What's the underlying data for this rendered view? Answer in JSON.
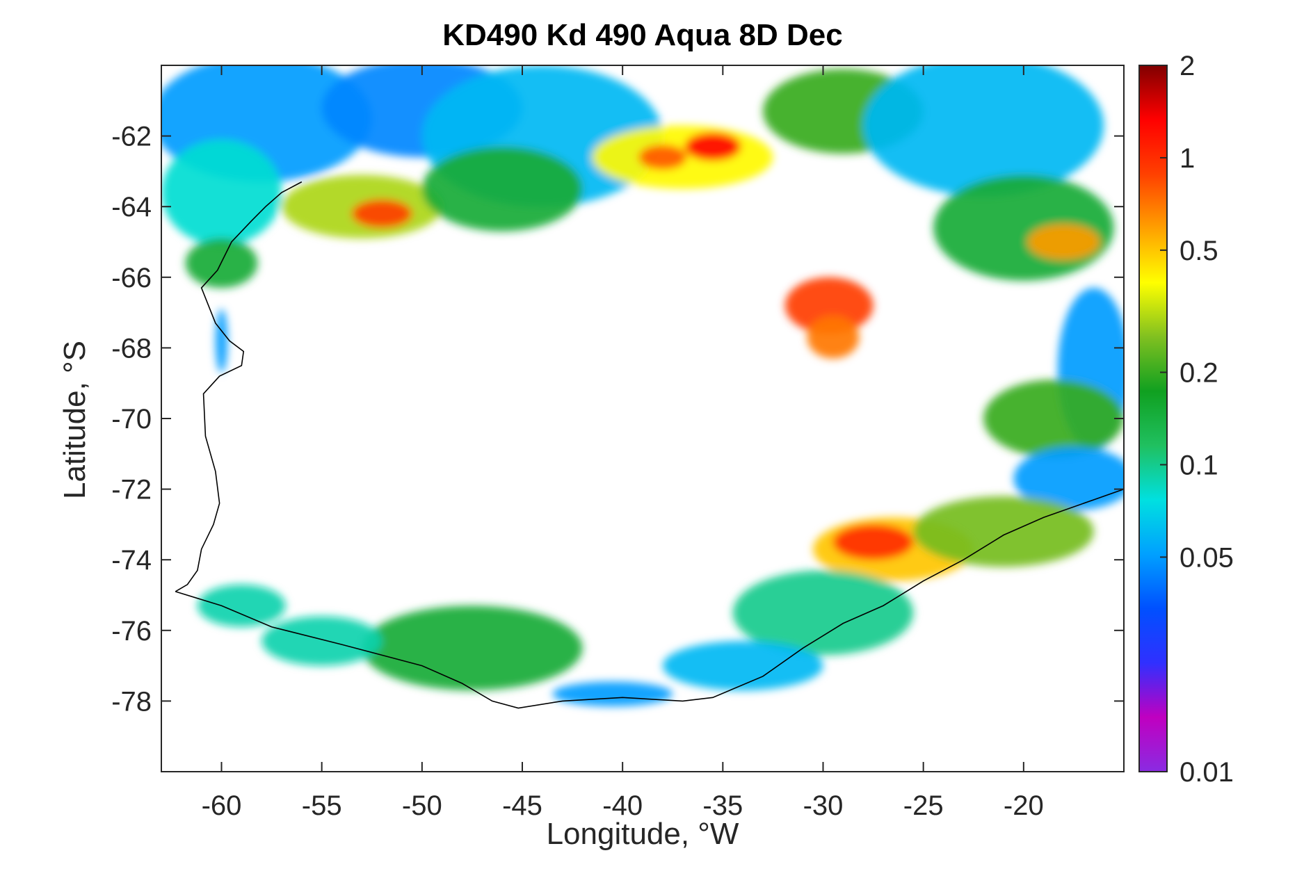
{
  "title": "KD490 Kd 490 Aqua 8D Dec",
  "x_axis": {
    "label": "Longitude, °W",
    "range": [
      -63,
      -15
    ],
    "ticks": [
      {
        "value": -60,
        "label": "-60"
      },
      {
        "value": -55,
        "label": "-55"
      },
      {
        "value": -50,
        "label": "-50"
      },
      {
        "value": -45,
        "label": "-45"
      },
      {
        "value": -40,
        "label": "-40"
      },
      {
        "value": -35,
        "label": "-35"
      },
      {
        "value": -30,
        "label": "-30"
      },
      {
        "value": -25,
        "label": "-25"
      },
      {
        "value": -20,
        "label": "-20"
      }
    ]
  },
  "y_axis": {
    "label": "Latitude, °S",
    "range": [
      -80,
      -60
    ],
    "ticks": [
      {
        "value": -62,
        "label": "-62"
      },
      {
        "value": -64,
        "label": "-64"
      },
      {
        "value": -66,
        "label": "-66"
      },
      {
        "value": -68,
        "label": "-68"
      },
      {
        "value": -70,
        "label": "-70"
      },
      {
        "value": -72,
        "label": "-72"
      },
      {
        "value": -74,
        "label": "-74"
      },
      {
        "value": -76,
        "label": "-76"
      },
      {
        "value": -78,
        "label": "-78"
      }
    ]
  },
  "colorbar": {
    "scale": "log",
    "range": [
      0.01,
      2
    ],
    "ticks": [
      {
        "value": 2,
        "label": "2"
      },
      {
        "value": 1,
        "label": "1"
      },
      {
        "value": 0.5,
        "label": "0.5"
      },
      {
        "value": 0.2,
        "label": "0.2"
      },
      {
        "value": 0.1,
        "label": "0.1"
      },
      {
        "value": 0.05,
        "label": "0.05"
      },
      {
        "value": 0.01,
        "label": "0.01"
      }
    ],
    "colors": [
      "#8a2be2",
      "#c000c0",
      "#3030ff",
      "#0050ff",
      "#00a0ff",
      "#00e0e0",
      "#20c060",
      "#10a020",
      "#80c020",
      "#ffff00",
      "#ffa000",
      "#ff4000",
      "#ff0000",
      "#800000"
    ]
  },
  "map_data": {
    "coastline": [
      [
        -62.3,
        -74.9
      ],
      [
        -61.7,
        -74.7
      ],
      [
        -61.2,
        -74.3
      ],
      [
        -61.0,
        -73.7
      ],
      [
        -60.4,
        -73.0
      ],
      [
        -60.1,
        -72.4
      ],
      [
        -60.3,
        -71.5
      ],
      [
        -60.8,
        -70.5
      ],
      [
        -60.9,
        -69.3
      ],
      [
        -60.1,
        -68.8
      ],
      [
        -59.0,
        -68.5
      ],
      [
        -58.9,
        -68.1
      ],
      [
        -59.6,
        -67.8
      ],
      [
        -60.3,
        -67.3
      ],
      [
        -61.0,
        -66.3
      ],
      [
        -60.2,
        -65.8
      ],
      [
        -59.5,
        -65.0
      ],
      [
        -58.5,
        -64.4
      ],
      [
        -57.8,
        -64.0
      ],
      [
        -57.0,
        -63.6
      ],
      [
        -56.0,
        -63.3
      ]
    ],
    "south_coast": [
      [
        -62.3,
        -74.9
      ],
      [
        -60.0,
        -75.3
      ],
      [
        -57.5,
        -75.9
      ],
      [
        -54.0,
        -76.4
      ],
      [
        -50.0,
        -77.0
      ],
      [
        -48.0,
        -77.5
      ],
      [
        -46.5,
        -78.0
      ],
      [
        -45.2,
        -78.2
      ],
      [
        -43.0,
        -78.0
      ],
      [
        -40.0,
        -77.9
      ],
      [
        -37.0,
        -78.0
      ],
      [
        -35.5,
        -77.9
      ],
      [
        -33.0,
        -77.3
      ],
      [
        -31.0,
        -76.5
      ],
      [
        -29.0,
        -75.8
      ],
      [
        -27.0,
        -75.3
      ],
      [
        -25.0,
        -74.6
      ],
      [
        -23.0,
        -74.0
      ],
      [
        -21.0,
        -73.3
      ],
      [
        -19.0,
        -72.8
      ],
      [
        -16.5,
        -72.3
      ],
      [
        -15.0,
        -72.0
      ]
    ],
    "regions": [
      {
        "lon": -58,
        "lat": -61.5,
        "rx": 5.5,
        "ry": 1.8,
        "value": 0.05
      },
      {
        "lon": -50,
        "lat": -61.2,
        "rx": 5,
        "ry": 1.4,
        "value": 0.045
      },
      {
        "lon": -44,
        "lat": -62.0,
        "rx": 6,
        "ry": 2.0,
        "value": 0.06
      },
      {
        "lon": -60,
        "lat": -63.6,
        "rx": 3,
        "ry": 1.5,
        "value": 0.08
      },
      {
        "lon": -53,
        "lat": -64.0,
        "rx": 4,
        "ry": 0.9,
        "value": 0.3
      },
      {
        "lon": -52,
        "lat": -64.2,
        "rx": 1.5,
        "ry": 0.4,
        "value": 0.9
      },
      {
        "lon": -46,
        "lat": -63.5,
        "rx": 4,
        "ry": 1.2,
        "value": 0.15
      },
      {
        "lon": -37,
        "lat": -62.6,
        "rx": 4.5,
        "ry": 0.9,
        "value": 0.4
      },
      {
        "lon": -35.5,
        "lat": -62.3,
        "rx": 1.4,
        "ry": 0.4,
        "value": 1.3
      },
      {
        "lon": -38,
        "lat": -62.6,
        "rx": 1.2,
        "ry": 0.35,
        "value": 0.8
      },
      {
        "lon": -29,
        "lat": -61.3,
        "rx": 4,
        "ry": 1.2,
        "value": 0.2
      },
      {
        "lon": -22,
        "lat": -61.7,
        "rx": 6,
        "ry": 2.0,
        "value": 0.06
      },
      {
        "lon": -20,
        "lat": -64.6,
        "rx": 4.5,
        "ry": 1.5,
        "value": 0.15
      },
      {
        "lon": -18,
        "lat": -65.0,
        "rx": 1.8,
        "ry": 0.5,
        "value": 0.6
      },
      {
        "lon": -60,
        "lat": -65.6,
        "rx": 1.8,
        "ry": 0.7,
        "value": 0.15
      },
      {
        "lon": -29.7,
        "lat": -66.8,
        "rx": 2.2,
        "ry": 0.8,
        "value": 0.9
      },
      {
        "lon": -29.5,
        "lat": -67.7,
        "rx": 1.3,
        "ry": 0.6,
        "value": 0.7
      },
      {
        "lon": -16.5,
        "lat": -68.6,
        "rx": 1.8,
        "ry": 2.3,
        "value": 0.05
      },
      {
        "lon": -18.5,
        "lat": -70.0,
        "rx": 3.5,
        "ry": 1.1,
        "value": 0.2
      },
      {
        "lon": -17.5,
        "lat": -71.7,
        "rx": 3.0,
        "ry": 0.9,
        "value": 0.05
      },
      {
        "lon": -26.5,
        "lat": -73.7,
        "rx": 4.0,
        "ry": 0.9,
        "value": 0.5
      },
      {
        "lon": -27.5,
        "lat": -73.5,
        "rx": 2.0,
        "ry": 0.5,
        "value": 1.0
      },
      {
        "lon": -21,
        "lat": -73.2,
        "rx": 4.5,
        "ry": 1.0,
        "value": 0.25
      },
      {
        "lon": -30,
        "lat": -75.5,
        "rx": 4.5,
        "ry": 1.2,
        "value": 0.1
      },
      {
        "lon": -34,
        "lat": -77.0,
        "rx": 4.0,
        "ry": 0.7,
        "value": 0.06
      },
      {
        "lon": -47.5,
        "lat": -76.5,
        "rx": 5.5,
        "ry": 1.2,
        "value": 0.15
      },
      {
        "lon": -55,
        "lat": -76.3,
        "rx": 3.0,
        "ry": 0.7,
        "value": 0.09
      },
      {
        "lon": -40.5,
        "lat": -77.8,
        "rx": 3.0,
        "ry": 0.35,
        "value": 0.05
      },
      {
        "lon": -59,
        "lat": -75.3,
        "rx": 2.2,
        "ry": 0.6,
        "value": 0.09
      },
      {
        "lon": -60,
        "lat": -67.8,
        "rx": 0.3,
        "ry": 0.9,
        "value": 0.05
      }
    ]
  }
}
